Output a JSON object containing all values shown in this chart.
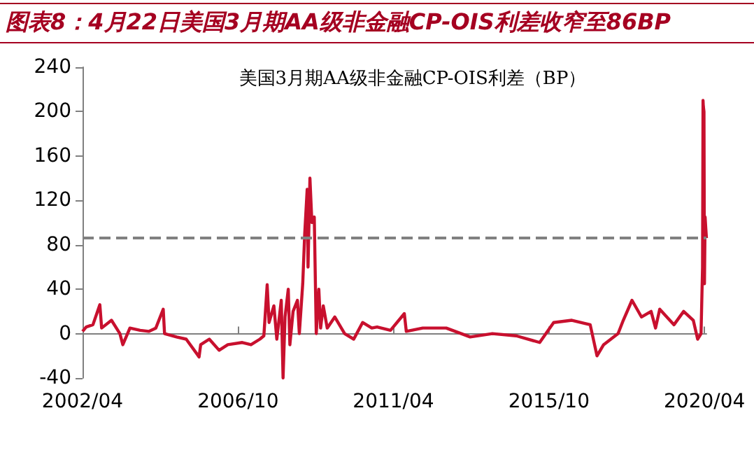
{
  "chart_data": {
    "type": "line",
    "title": "图表8：4月22日美国3月期AA级非金融CP-OIS利差收窄至86BP",
    "subtitle": "美国3月期AA级非金融CP-OIS利差（BP）",
    "x": [
      "2002-04-01",
      "2002-05-10",
      "2002-07-20",
      "2002-10-01",
      "2002-10-20",
      "2003-02-01",
      "2003-05-01",
      "2003-06-01",
      "2003-08-15",
      "2003-12-01",
      "2004-03-01",
      "2004-05-15",
      "2004-08-01",
      "2004-08-15",
      "2004-12-20",
      "2005-04-01",
      "2005-08-15",
      "2005-09-01",
      "2005-12-01",
      "2006-03-15",
      "2006-06-15",
      "2006-11-15",
      "2007-02-15",
      "2007-05-20",
      "2007-07-01",
      "2007-08-05",
      "2007-08-25",
      "2007-10-15",
      "2007-11-15",
      "2008-01-01",
      "2008-01-20",
      "2008-02-10",
      "2008-03-15",
      "2008-04-01",
      "2008-05-05",
      "2008-06-20",
      "2008-07-10",
      "2008-08-15",
      "2008-09-05",
      "2008-10-01",
      "2008-10-10",
      "2008-10-30",
      "2008-11-20",
      "2008-12-15",
      "2009-01-05",
      "2009-02-01",
      "2009-02-20",
      "2009-03-20",
      "2009-05-01",
      "2009-07-20",
      "2009-11-01",
      "2010-02-05",
      "2010-05-10",
      "2010-08-15",
      "2010-10-10",
      "2011-03-01",
      "2011-07-25",
      "2011-08-15",
      "2012-02-05",
      "2012-10-10",
      "2013-06-20",
      "2014-02-10",
      "2014-10-20",
      "2015-06-25",
      "2015-11-20",
      "2016-05-30",
      "2016-12-10",
      "2017-02-20",
      "2017-05-01",
      "2017-10-01",
      "2017-11-25",
      "2018-02-25",
      "2018-06-05",
      "2018-09-15",
      "2018-11-01",
      "2018-12-15",
      "2019-05-15",
      "2019-08-25",
      "2019-12-05",
      "2020-01-20",
      "2020-02-25",
      "2020-03-12",
      "2020-03-17",
      "2020-03-20",
      "2020-03-27",
      "2020-04-01",
      "2020-04-08",
      "2020-04-15",
      "2020-04-22"
    ],
    "series": [
      {
        "color": "#c8102e",
        "values": [
          2,
          6,
          8,
          26,
          5,
          12,
          0,
          -10,
          5,
          3,
          2,
          5,
          22,
          0,
          -3,
          -5,
          -21,
          -10,
          -5,
          -15,
          -10,
          -8,
          -10,
          -5,
          -2,
          44,
          10,
          25,
          -5,
          30,
          -40,
          15,
          40,
          -10,
          20,
          30,
          0,
          45,
          90,
          130,
          60,
          140,
          100,
          105,
          0,
          40,
          5,
          25,
          5,
          15,
          0,
          -5,
          10,
          5,
          6,
          3,
          18,
          2,
          5,
          5,
          -3,
          0,
          -2,
          -8,
          10,
          12,
          8,
          -20,
          -10,
          0,
          12,
          30,
          15,
          20,
          5,
          22,
          8,
          20,
          12,
          -5,
          0,
          60,
          210,
          205,
          200,
          45,
          105,
          95,
          86
        ]
      }
    ],
    "xlim": [
      "2002-04-01",
      "2020-04-22"
    ],
    "xticks": [
      {
        "value": "2002-04-01",
        "label": "2002/04"
      },
      {
        "value": "2006-10-01",
        "label": "2006/10"
      },
      {
        "value": "2011-04-01",
        "label": "2011/04"
      },
      {
        "value": "2015-10-01",
        "label": "2015/10"
      },
      {
        "value": "2020-04-01",
        "label": "2020/04"
      }
    ],
    "ylim": [
      -40,
      240
    ],
    "yticks": [
      -40,
      0,
      40,
      80,
      120,
      160,
      200,
      240
    ],
    "ref_lines": [
      {
        "axis": "y",
        "value": 86,
        "color": "#808080",
        "line_style": "dashed"
      }
    ],
    "marker": "none",
    "line_style": "solid"
  }
}
